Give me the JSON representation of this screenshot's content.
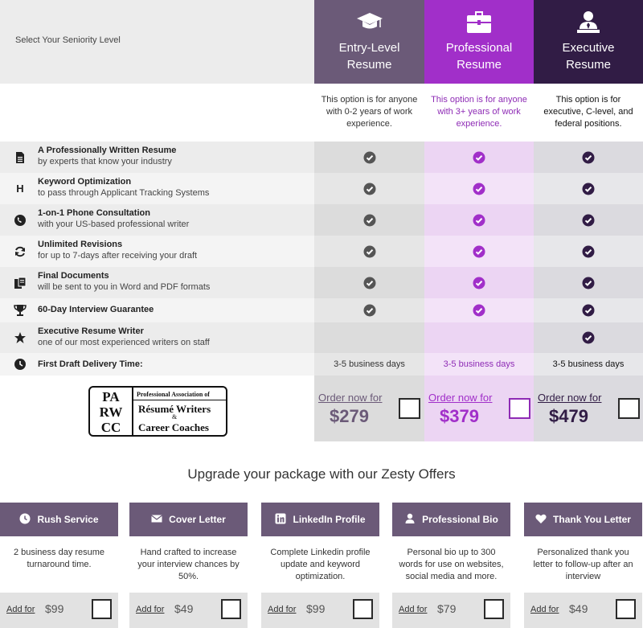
{
  "header": {
    "prompt": "Select Your Seniority Level"
  },
  "colors": {
    "entry": "#6b5a78",
    "professional": "#a12fc9",
    "executive": "#311c45",
    "check_dark": "#555555"
  },
  "plans": [
    {
      "name_line1": "Entry-Level",
      "name_line2": "Resume",
      "icon": "graduation-cap-icon",
      "description": "This option is for anyone with 0-2 years of work experience.",
      "delivery": "3-5 business days",
      "order_label": "Order now for",
      "price": "$279"
    },
    {
      "name_line1": "Professional",
      "name_line2": "Resume",
      "icon": "briefcase-icon",
      "description": "This option is for anyone with 3+ years of work experience.",
      "delivery": "3-5 business days",
      "order_label": "Order now for",
      "price": "$379"
    },
    {
      "name_line1": "Executive",
      "name_line2": "Resume",
      "icon": "executive-user-icon",
      "description": "This option is for executive, C-level, and federal positions.",
      "delivery": "3-5 business days",
      "order_label": "Order now for",
      "price": "$479"
    }
  ],
  "features": [
    {
      "icon": "document-icon",
      "title": "A Professionally Written Resume",
      "subtitle": "by experts that know your industry",
      "included": [
        true,
        true,
        true
      ]
    },
    {
      "icon": "h-letter-icon",
      "title": "Keyword Optimization",
      "subtitle": "to pass through Applicant Tracking Systems",
      "included": [
        true,
        true,
        true
      ]
    },
    {
      "icon": "phone-icon",
      "title": "1-on-1 Phone Consultation",
      "subtitle": "with your US-based professional writer",
      "included": [
        true,
        true,
        true
      ]
    },
    {
      "icon": "refresh-icon",
      "title": "Unlimited Revisions",
      "subtitle": "for up to 7-days after receiving your draft",
      "included": [
        true,
        true,
        true
      ]
    },
    {
      "icon": "files-icon",
      "title": "Final Documents",
      "subtitle": "will be sent to you in Word and PDF formats",
      "included": [
        true,
        true,
        true
      ]
    },
    {
      "icon": "trophy-icon",
      "title": "60-Day Interview Guarantee",
      "subtitle": "",
      "included": [
        true,
        true,
        true
      ]
    },
    {
      "icon": "star-icon",
      "title": "Executive Resume Writer",
      "subtitle": "one of our most experienced writers on staff",
      "included": [
        false,
        false,
        true
      ]
    }
  ],
  "delivery_row": {
    "icon": "clock-icon",
    "title": "First Draft Delivery Time:"
  },
  "association_logo": {
    "letters": [
      "PA",
      "RW",
      "CC"
    ],
    "line1": "Professional Association of",
    "line2": "Résumé Writers",
    "amp": "&",
    "line3": "Career Coaches"
  },
  "upgrades": {
    "title": "Upgrade your package with our Zesty Offers",
    "items": [
      {
        "name": "Rush Service",
        "icon": "clock-icon",
        "description": "2 business day resume turnaround time.",
        "add_label": "Add for",
        "price": "$99"
      },
      {
        "name": "Cover Letter",
        "icon": "envelope-icon",
        "description": "Hand crafted to increase your interview chances by 50%.",
        "add_label": "Add for",
        "price": "$49"
      },
      {
        "name": "LinkedIn Profile",
        "icon": "linkedin-icon",
        "description": "Complete Linkedin profile update and keyword optimization.",
        "add_label": "Add for",
        "price": "$99"
      },
      {
        "name": "Professional Bio",
        "icon": "user-icon",
        "description": "Personal bio up to 300 words for use on websites, social media and more.",
        "add_label": "Add for",
        "price": "$79"
      },
      {
        "name": "Thank You Letter",
        "icon": "heart-icon",
        "description": "Personalized thank you letter to follow-up after an interview",
        "add_label": "Add for",
        "price": "$49"
      }
    ]
  }
}
